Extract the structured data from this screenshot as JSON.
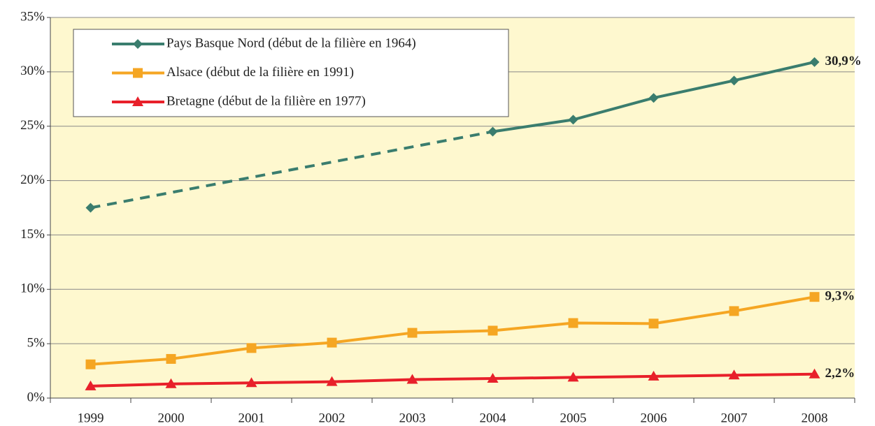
{
  "chart_data": {
    "type": "line",
    "categories": [
      "1999",
      "2000",
      "2001",
      "2002",
      "2003",
      "2004",
      "2005",
      "2006",
      "2007",
      "2008"
    ],
    "series": [
      {
        "name": "Pays Basque Nord (début de la filière en 1964)",
        "color": "#3a7d6e",
        "marker": "diamond",
        "gap_line": "dashed",
        "values": [
          17.5,
          null,
          null,
          null,
          null,
          24.5,
          25.6,
          27.6,
          29.2,
          30.9
        ],
        "value_labels": [
          null,
          null,
          null,
          null,
          null,
          null,
          null,
          null,
          null,
          "30,9%"
        ]
      },
      {
        "name": "Alsace (début de la filière en 1991)",
        "color": "#f5a623",
        "marker": "square",
        "values": [
          3.1,
          3.6,
          4.6,
          5.1,
          6.0,
          6.2,
          6.9,
          6.85,
          8.0,
          9.3
        ],
        "value_labels": [
          null,
          null,
          null,
          null,
          null,
          null,
          null,
          null,
          null,
          "9,3%"
        ]
      },
      {
        "name": "Bretagne (début de la filière en 1977)",
        "color": "#e8202a",
        "marker": "triangle",
        "values": [
          1.1,
          1.3,
          1.4,
          1.5,
          1.7,
          1.8,
          1.9,
          2.0,
          2.1,
          2.2
        ],
        "value_labels": [
          null,
          null,
          null,
          null,
          null,
          null,
          null,
          null,
          null,
          "2,2%"
        ]
      }
    ],
    "ylim": [
      0,
      35
    ],
    "yticks": [
      {
        "value": 0,
        "label": "0%"
      },
      {
        "value": 5,
        "label": "5%"
      },
      {
        "value": 10,
        "label": "10%"
      },
      {
        "value": 15,
        "label": "15%"
      },
      {
        "value": 20,
        "label": "20%"
      },
      {
        "value": 25,
        "label": "25%"
      },
      {
        "value": 30,
        "label": "30%"
      },
      {
        "value": 35,
        "label": "35%"
      }
    ],
    "grid": true,
    "legend": "upper left",
    "background": "#fef8cf"
  }
}
